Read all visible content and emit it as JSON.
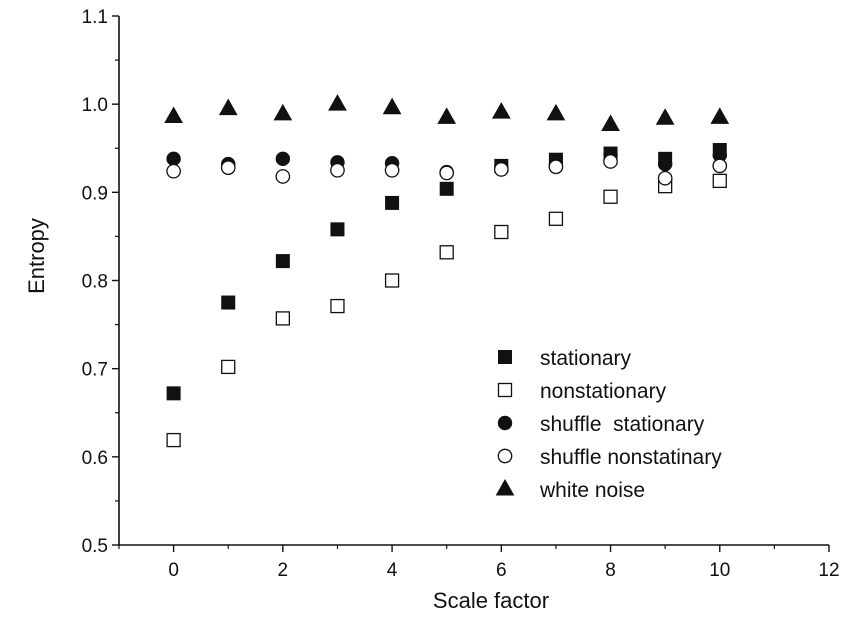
{
  "chart_data": {
    "type": "scatter",
    "title": "",
    "xlabel": "Scale factor",
    "ylabel": "Entropy",
    "xlim": [
      -1,
      12
    ],
    "ylim": [
      0.5,
      1.1
    ],
    "xticks": [
      0,
      2,
      4,
      6,
      8,
      10,
      12
    ],
    "xtick_labels": [
      "0",
      "2",
      "4",
      "6",
      "8",
      "10",
      "12"
    ],
    "yticks": [
      0.5,
      0.6,
      0.7,
      0.8,
      0.9,
      1.0,
      1.1
    ],
    "ytick_labels": [
      "0.5",
      "0.6",
      "0.7",
      "0.8",
      "0.9",
      "1.0",
      "1.1"
    ],
    "grid": false,
    "legend_position": "lower-right",
    "x": [
      0,
      1,
      2,
      3,
      4,
      5,
      6,
      7,
      8,
      9,
      10
    ],
    "series": [
      {
        "name": "stationary",
        "marker": "square-filled",
        "values": [
          0.672,
          0.775,
          0.822,
          0.858,
          0.888,
          0.904,
          0.93,
          0.937,
          0.944,
          0.938,
          0.948
        ]
      },
      {
        "name": "nonstationary",
        "marker": "square-open",
        "values": [
          0.619,
          0.702,
          0.757,
          0.771,
          0.8,
          0.832,
          0.855,
          0.87,
          0.895,
          0.907,
          0.913
        ]
      },
      {
        "name": "shuffle  stationary",
        "marker": "circle-filled",
        "values": [
          0.938,
          0.932,
          0.938,
          0.934,
          0.933,
          0.923,
          0.928,
          0.932,
          0.943,
          0.932,
          0.942
        ]
      },
      {
        "name": "shuffle nonstatinary",
        "marker": "circle-open",
        "values": [
          0.924,
          0.928,
          0.918,
          0.925,
          0.925,
          0.922,
          0.926,
          0.929,
          0.935,
          0.916,
          0.93
        ]
      },
      {
        "name": "white noise",
        "marker": "triangle-filled",
        "values": [
          0.986,
          0.995,
          0.989,
          1.0,
          0.996,
          0.985,
          0.991,
          0.989,
          0.977,
          0.984,
          0.985
        ]
      }
    ]
  }
}
